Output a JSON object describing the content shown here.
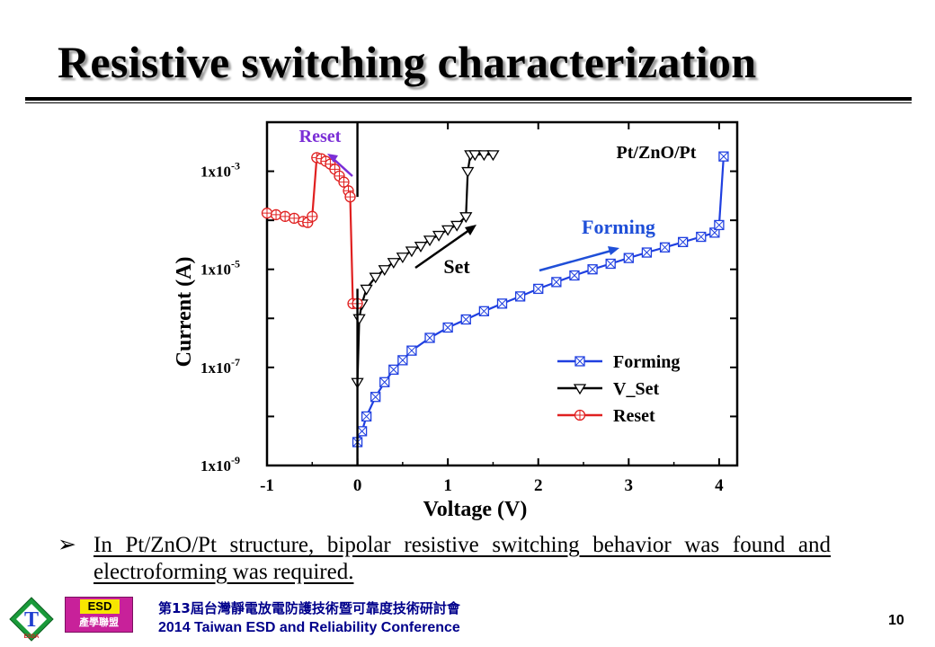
{
  "slide": {
    "title": "Resistive switching characterization",
    "bullet_symbol": "➢",
    "bullet_text": "In Pt/ZnO/Pt structure, bipolar resistive switching behavior was found and electroforming was required.",
    "page_number": "10"
  },
  "footer": {
    "conference_cn": "第13屆台灣靜電放電防護技術暨可靠度技術研討會",
    "conference_en": "2014 Taiwan ESD and Reliability Conference",
    "logo_esd_top": "ESD",
    "logo_esd_bottom": "產學聯盟",
    "logo_t_letter": "T",
    "logo_t_sub": "ESDA"
  },
  "chart_data": {
    "type": "line",
    "xlabel": "Voltage (V)",
    "ylabel": "Current (A)",
    "xlim": [
      -1,
      4.2
    ],
    "ylim": [
      1e-09,
      0.01
    ],
    "yscale": "log",
    "xticks": [
      -1,
      0,
      1,
      2,
      3,
      4
    ],
    "yticks": [
      {
        "value": 1e-09,
        "label": "1x10"
      },
      {
        "value": 1e-07,
        "label": "1x10"
      },
      {
        "value": 1e-05,
        "label": "1x10"
      },
      {
        "value": 0.001,
        "label": "1x10"
      }
    ],
    "ytick_exponents": [
      "-9",
      "-7",
      "-5",
      "-3"
    ],
    "inset_label": "Pt/ZnO/Pt",
    "legend_position": "bottom-right",
    "annotations": [
      {
        "text": "Reset",
        "color": "#7b2fd6"
      },
      {
        "text": "Set",
        "color": "#000000"
      },
      {
        "text": "Forming",
        "color": "#1f4fd8"
      }
    ],
    "series": [
      {
        "name": "Forming",
        "color": "#1f3fe0",
        "marker": "square-x",
        "x": [
          0.0,
          0.05,
          0.1,
          0.2,
          0.3,
          0.4,
          0.5,
          0.6,
          0.8,
          1.0,
          1.2,
          1.4,
          1.6,
          1.8,
          2.0,
          2.2,
          2.4,
          2.6,
          2.8,
          3.0,
          3.2,
          3.4,
          3.6,
          3.8,
          3.95,
          4.0,
          4.05
        ],
        "y": [
          3e-09,
          5e-09,
          1e-08,
          2.5e-08,
          5e-08,
          9e-08,
          1.4e-07,
          2.2e-07,
          4e-07,
          6.5e-07,
          9.5e-07,
          1.4e-06,
          2e-06,
          2.8e-06,
          4e-06,
          5.5e-06,
          7.5e-06,
          1e-05,
          1.3e-05,
          1.7e-05,
          2.2e-05,
          2.8e-05,
          3.6e-05,
          4.6e-05,
          5.6e-05,
          8e-05,
          0.002
        ]
      },
      {
        "name": "V_Set",
        "color": "#000000",
        "marker": "triangle-down",
        "x": [
          0.0,
          0.02,
          0.05,
          0.1,
          0.2,
          0.3,
          0.4,
          0.5,
          0.6,
          0.7,
          0.8,
          0.9,
          1.0,
          1.1,
          1.2,
          1.22,
          1.25,
          1.3,
          1.4,
          1.5
        ],
        "y": [
          5e-08,
          1e-06,
          2e-06,
          4e-06,
          7e-06,
          1e-05,
          1.4e-05,
          1.8e-05,
          2.4e-05,
          3e-05,
          4e-05,
          5e-05,
          6.5e-05,
          8e-05,
          0.00012,
          0.001,
          0.0022,
          0.0022,
          0.0022,
          0.0022
        ]
      },
      {
        "name": "Reset",
        "color": "#e02020",
        "marker": "circle-plus",
        "x": [
          -1.0,
          -0.9,
          -0.8,
          -0.7,
          -0.6,
          -0.55,
          -0.5,
          -0.45,
          -0.4,
          -0.35,
          -0.3,
          -0.25,
          -0.2,
          -0.15,
          -0.1,
          -0.08,
          -0.05,
          0.0
        ],
        "y": [
          0.00014,
          0.00013,
          0.00012,
          0.00011,
          9.5e-05,
          9e-05,
          0.00012,
          0.0019,
          0.0018,
          0.0016,
          0.0014,
          0.0011,
          0.0008,
          0.0006,
          0.0004,
          0.0003,
          2e-06,
          2e-06
        ]
      }
    ]
  }
}
